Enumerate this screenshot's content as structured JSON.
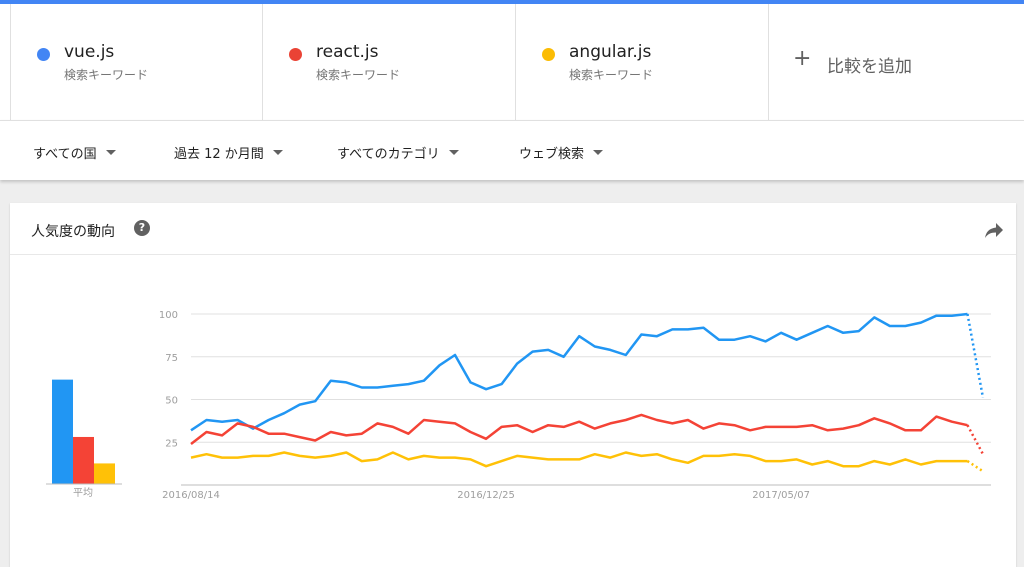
{
  "terms": [
    {
      "name": "vue.js",
      "subtitle": "検索キーワード",
      "color": "#4285f4"
    },
    {
      "name": "react.js",
      "subtitle": "検索キーワード",
      "color": "#ea4335"
    },
    {
      "name": "angular.js",
      "subtitle": "検索キーワード",
      "color": "#fbbc04"
    }
  ],
  "add_term": {
    "icon": "plus-icon",
    "label": "比較を追加"
  },
  "filters": [
    {
      "label": "すべての国"
    },
    {
      "label": "過去 12 か月間"
    },
    {
      "label": "すべてのカテゴリ"
    },
    {
      "label": "ウェブ検索"
    }
  ],
  "card": {
    "title": "人気度の動向",
    "help_icon": "help-icon",
    "share_icon": "share-icon"
  },
  "chart_data": [
    {
      "type": "bar",
      "categories": [
        "平均"
      ],
      "series": [
        {
          "name": "vue.js",
          "values": [
            71
          ],
          "color": "#2196f3"
        },
        {
          "name": "react.js",
          "values": [
            32
          ],
          "color": "#f44336"
        },
        {
          "name": "angular.js",
          "values": [
            14
          ],
          "color": "#ffc107"
        }
      ],
      "ylim": [
        0,
        100
      ]
    },
    {
      "type": "line",
      "x_tick_labels": [
        "2016/08/14",
        "2016/12/25",
        "2017/05/07"
      ],
      "y_tick_labels": [
        "100",
        "75",
        "50",
        "25"
      ],
      "ylim": [
        0,
        100
      ],
      "grid": true,
      "partial_last_point": true,
      "series": [
        {
          "name": "vue.js",
          "color": "#2196f3",
          "values": [
            32,
            38,
            37,
            38,
            33,
            38,
            42,
            47,
            49,
            61,
            60,
            57,
            57,
            58,
            59,
            61,
            70,
            76,
            60,
            56,
            59,
            71,
            78,
            79,
            75,
            87,
            81,
            79,
            76,
            88,
            87,
            91,
            91,
            92,
            85,
            85,
            87,
            84,
            89,
            85,
            89,
            93,
            89,
            90,
            98,
            93,
            93,
            95,
            99,
            99,
            100,
            51
          ]
        },
        {
          "name": "react.js",
          "color": "#f44336",
          "values": [
            24,
            31,
            29,
            36,
            34,
            30,
            30,
            28,
            26,
            31,
            29,
            30,
            36,
            34,
            30,
            38,
            37,
            36,
            31,
            27,
            34,
            35,
            31,
            35,
            34,
            37,
            33,
            36,
            38,
            41,
            38,
            36,
            38,
            33,
            36,
            35,
            32,
            34,
            34,
            34,
            35,
            32,
            33,
            35,
            39,
            36,
            32,
            32,
            40,
            37,
            35,
            18
          ]
        },
        {
          "name": "angular.js",
          "color": "#ffc107",
          "values": [
            16,
            18,
            16,
            16,
            17,
            17,
            19,
            17,
            16,
            17,
            19,
            14,
            15,
            19,
            15,
            17,
            16,
            16,
            15,
            11,
            14,
            17,
            16,
            15,
            15,
            15,
            18,
            16,
            19,
            17,
            18,
            15,
            13,
            17,
            17,
            18,
            17,
            14,
            14,
            15,
            12,
            14,
            11,
            11,
            14,
            12,
            15,
            12,
            14,
            14,
            14,
            8
          ]
        }
      ]
    }
  ]
}
